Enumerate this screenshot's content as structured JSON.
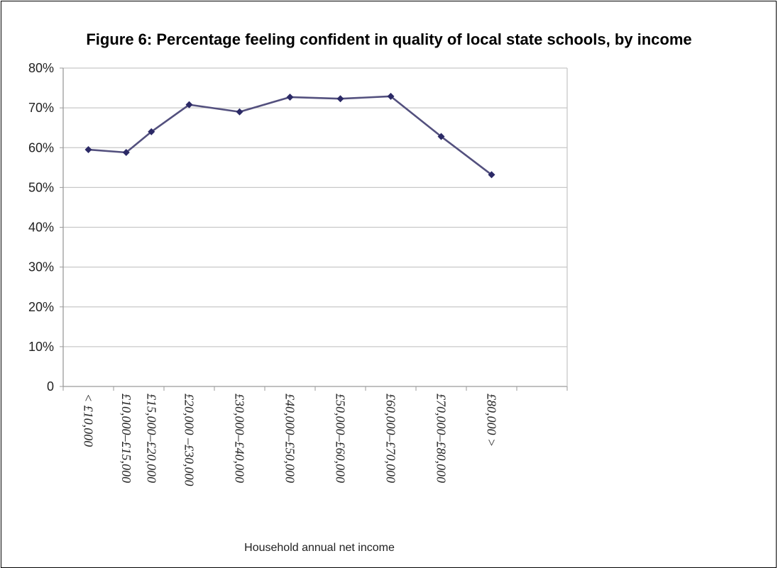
{
  "chart_data": {
    "type": "line",
    "title": "Figure 6: Percentage feeling confident in quality of local state schools, by income",
    "xlabel": "Household annual net income",
    "ylabel": "",
    "categories": [
      "< £10,000",
      "£10,000–£15,000",
      "£15,000–£20,000",
      "£20,000 –£30,000",
      "£30,000–£40,000",
      "£40,000–£50,000",
      "£50,000–£60,000",
      "£60,000–£70,000",
      "£70,000–£80,000",
      "£80,000 >"
    ],
    "x_numeric": [
      5000,
      12500,
      17500,
      25000,
      35000,
      45000,
      55000,
      65000,
      75000,
      85000
    ],
    "values": [
      59.5,
      58.8,
      64,
      70.8,
      69,
      72.7,
      72.3,
      72.9,
      62.8,
      53.2
    ],
    "ylim": [
      0,
      80
    ],
    "yticks": [
      "0",
      "10%",
      "20%",
      "30%",
      "40%",
      "50%",
      "60%",
      "70%",
      "80%"
    ],
    "grid": true,
    "legend": "none",
    "colors": {
      "line": "#53507e",
      "marker": "#2b2966",
      "grid": "#c8c8c8",
      "axis": "#9a9a9a"
    }
  }
}
